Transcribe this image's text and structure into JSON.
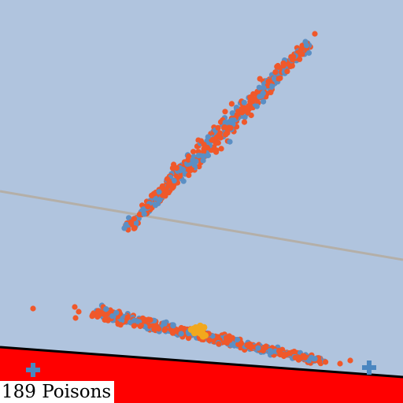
{
  "hud": {
    "poison_count": 189,
    "poison_label": "189 Poisons"
  },
  "colors": {
    "sky": "#b0c4de",
    "ground": "#ff0000",
    "ground_edge": "#000000",
    "guide_line": "#b4afa8",
    "dot_blue": "#5b8fc4",
    "dot_orange": "#f0582a",
    "dot_yellow": "#f2a81d",
    "marker": "#4a86c0",
    "label_bg": "#ffffff"
  },
  "icons": {
    "left_marker": "plus-icon",
    "right_marker": "plus-icon"
  }
}
